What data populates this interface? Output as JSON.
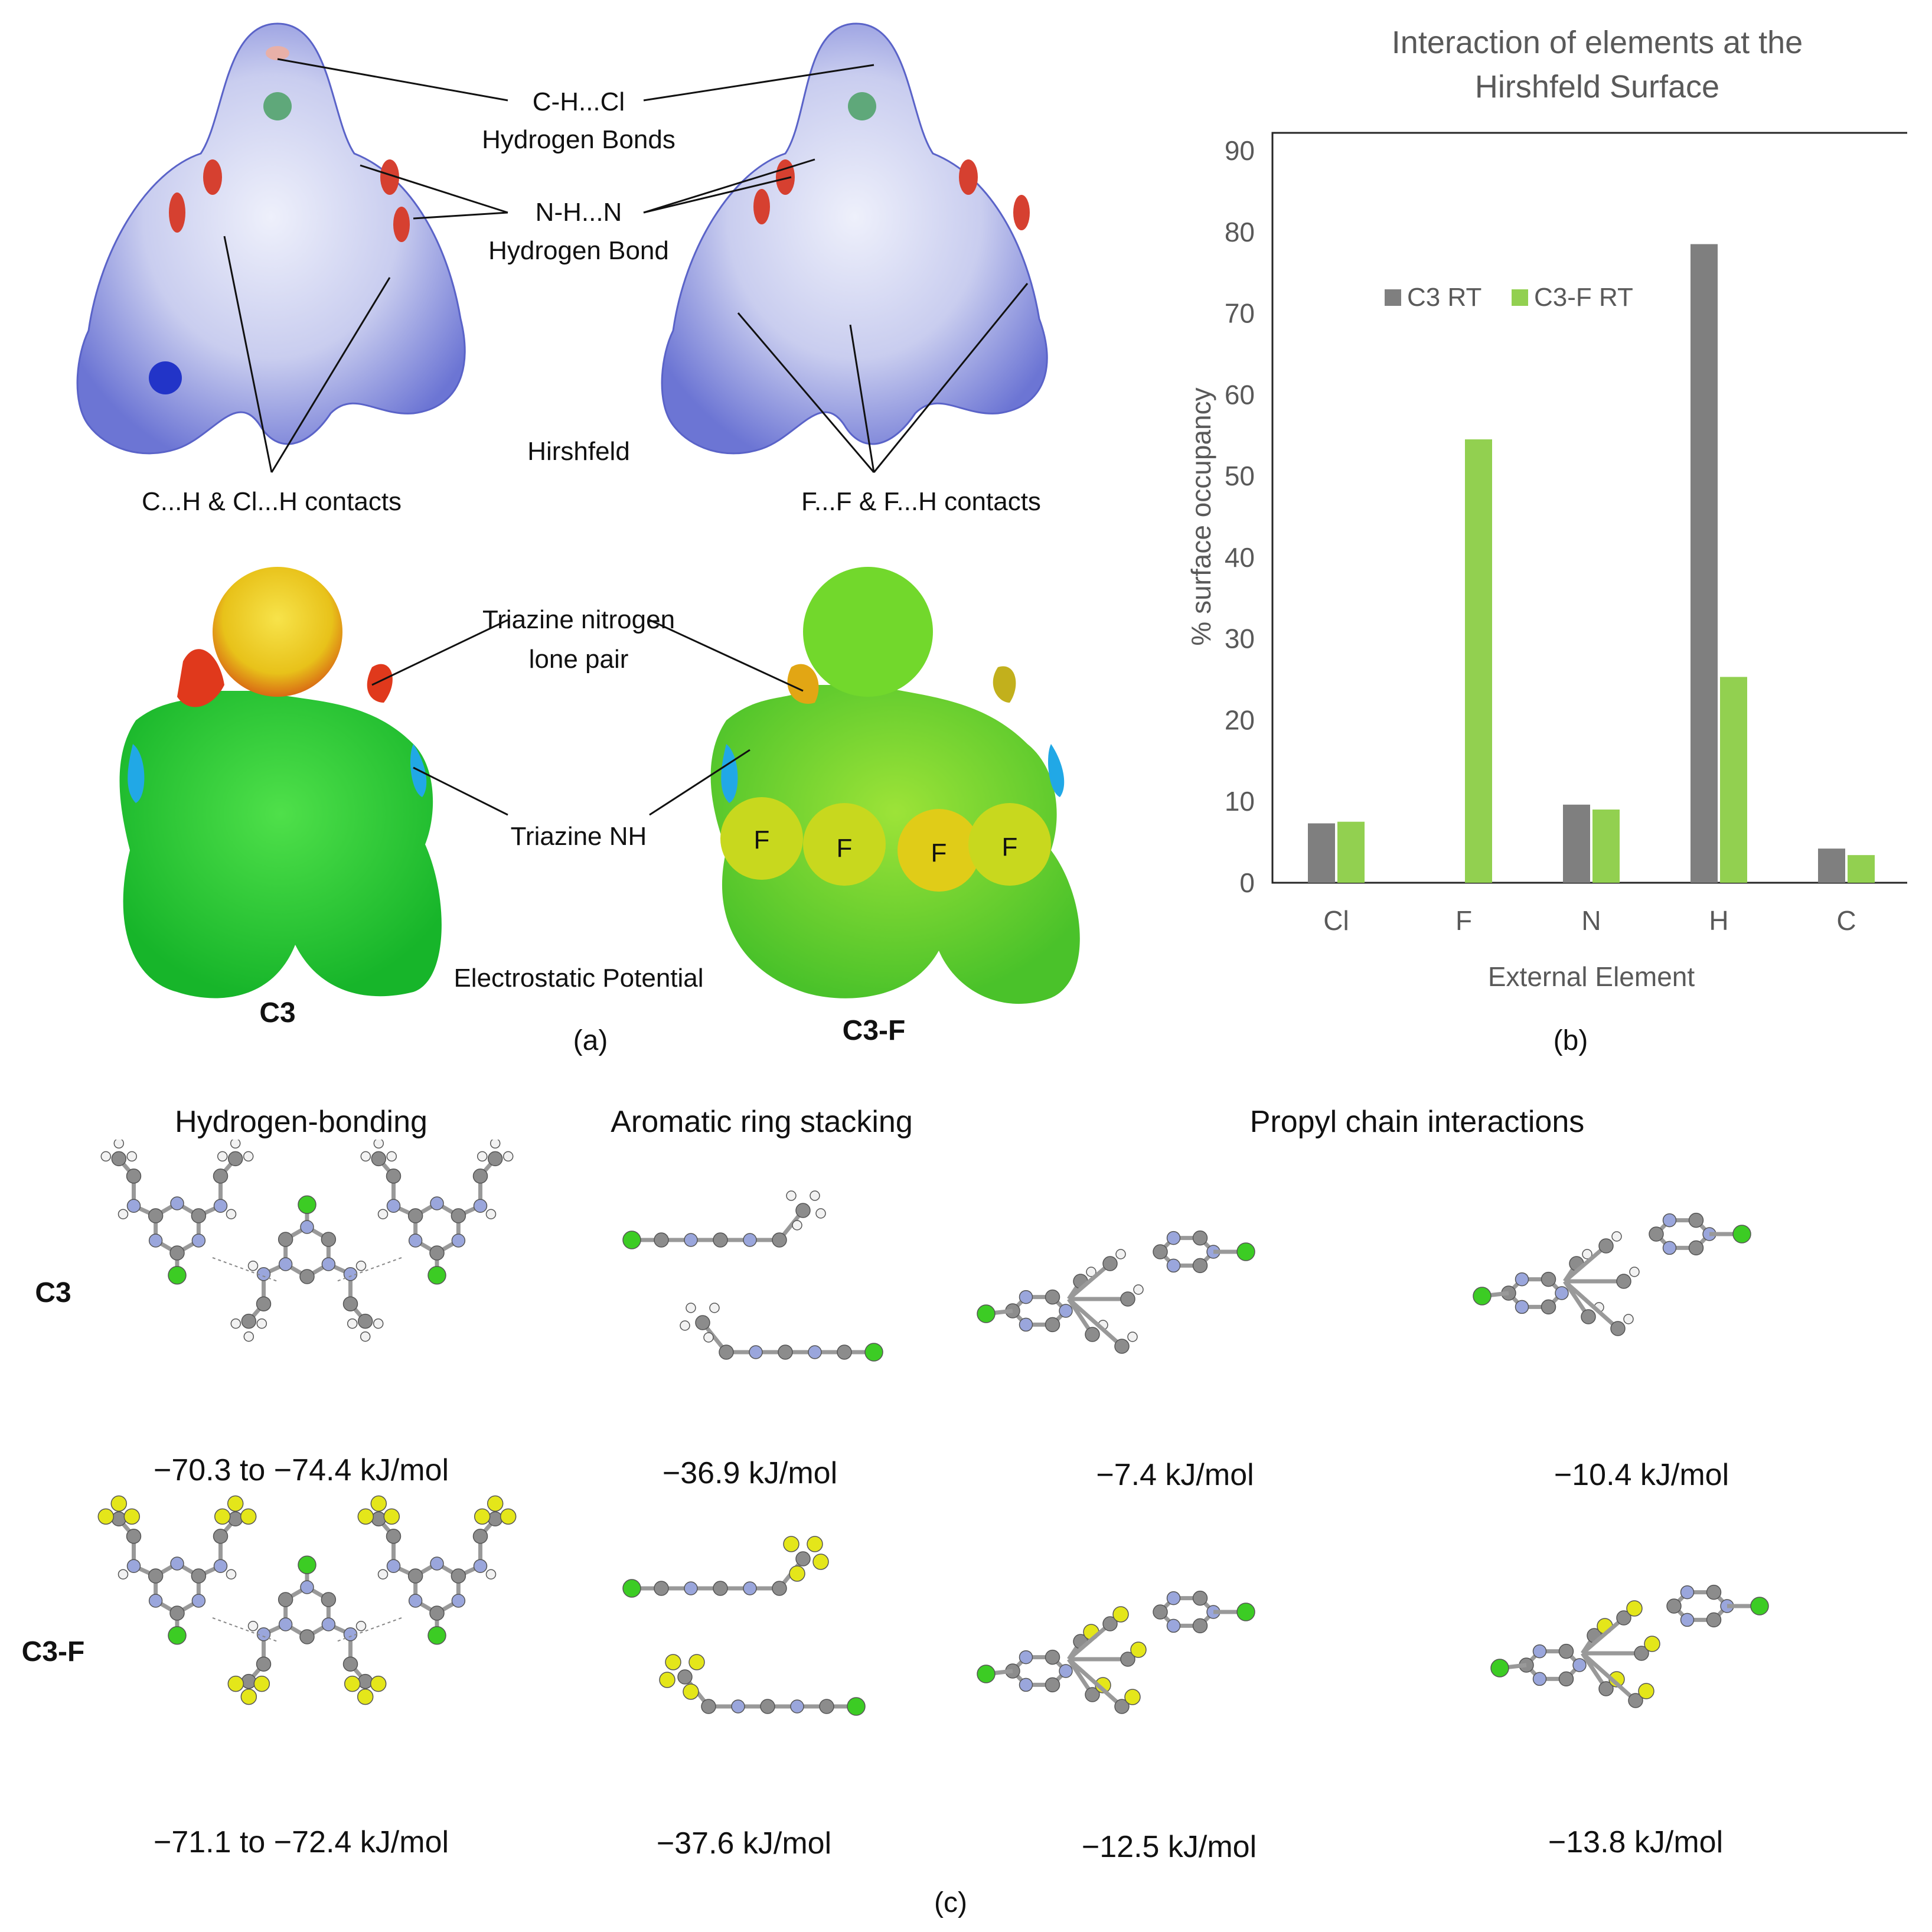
{
  "panel_a": {
    "hirshfeld_label": "Hirshfeld",
    "esp_label": "Electrostatic Potential",
    "annotations": {
      "chcl_line1": "C-H...Cl",
      "chcl_line2": "Hydrogen Bonds",
      "nhn_line1": "N-H...N",
      "nhn_line2": "Hydrogen Bond",
      "ch_contacts": "C...H & Cl...H contacts",
      "ff_contacts": "F...F & F...H contacts",
      "triazine_lp_line1": "Triazine nitrogen",
      "triazine_lp_line2": "lone pair",
      "triazine_nh": "Triazine NH"
    },
    "fluorine_labels": [
      "F",
      "F",
      "F",
      "F"
    ],
    "compound_left": "C3",
    "compound_right": "C3-F",
    "panel_letter": "(a)"
  },
  "panel_b": {
    "panel_letter": "(b)"
  },
  "chart_data": {
    "type": "bar",
    "title": "Interaction of elements at the Hirshfeld Surface",
    "xlabel": "External Element",
    "ylabel": "% surface occupancy",
    "categories": [
      "Cl",
      "F",
      "N",
      "H",
      "C"
    ],
    "series": [
      {
        "name": "C3 RT",
        "color": "#7f7f7f",
        "values": [
          7.3,
          0,
          9.6,
          78.5,
          4.2
        ]
      },
      {
        "name": "C3-F RT",
        "color": "#92d050",
        "values": [
          7.5,
          54.5,
          9.0,
          25.3,
          3.4
        ]
      }
    ],
    "ylim": [
      0,
      90
    ],
    "yticks": [
      0,
      10,
      20,
      30,
      40,
      50,
      60,
      70,
      80,
      90
    ],
    "grid": false,
    "legend": "top-left"
  },
  "panel_c": {
    "headers": {
      "hbond": "Hydrogen-bonding",
      "stacking": "Aromatic ring stacking",
      "propyl": "Propyl chain interactions"
    },
    "row_labels": {
      "c3": "C3",
      "c3f": "C3-F"
    },
    "energies": {
      "c3_hbond": "−70.3 to −74.4 kJ/mol",
      "c3_stack": "−36.9 kJ/mol",
      "c3_propyl1": "−7.4 kJ/mol",
      "c3_propyl2": "−10.4 kJ/mol",
      "c3f_hbond": "−71.1 to −72.4 kJ/mol",
      "c3f_stack": "−37.6 kJ/mol",
      "c3f_propyl1": "−12.5 kJ/mol",
      "c3f_propyl2": "−13.8 kJ/mol"
    },
    "panel_letter": "(c)"
  },
  "colors": {
    "carbon": "#8c8c8c",
    "nitrogen": "#9aa6dc",
    "chlorine": "#3ccc24",
    "fluorine": "#e4e61a",
    "hydrogen": "#f2f2f2"
  }
}
